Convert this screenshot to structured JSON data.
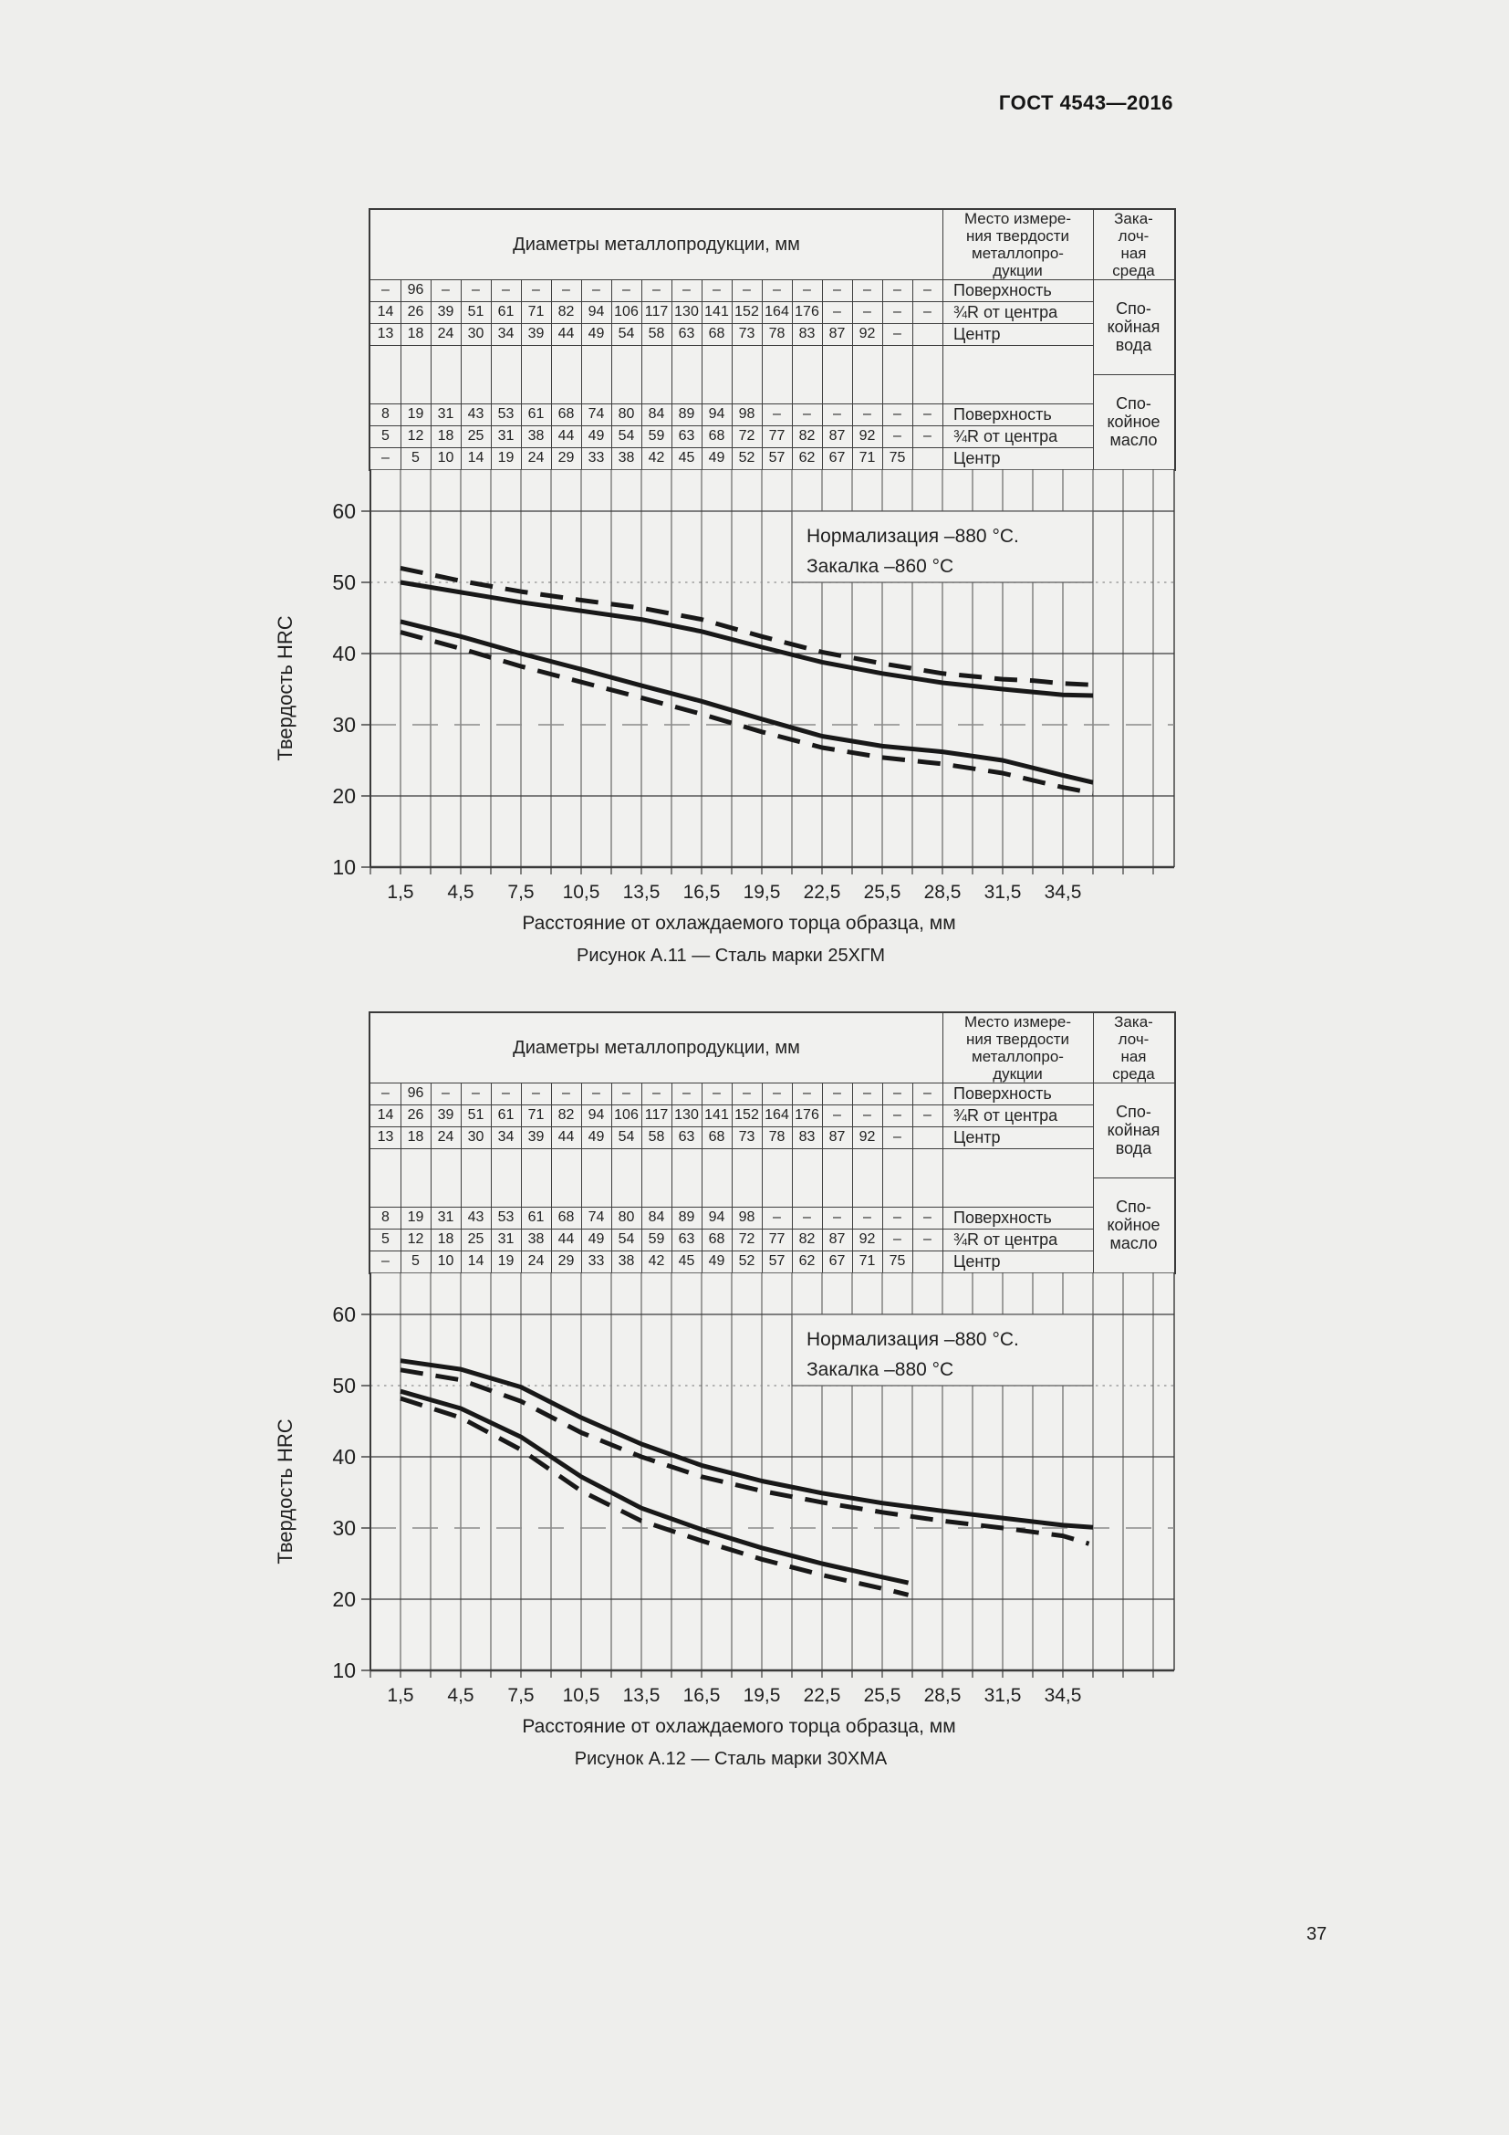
{
  "page": {
    "header": "ГОСТ 4543—2016",
    "page_number": "37"
  },
  "colors": {
    "page_bg": "#eeeeec",
    "panel_bg": "#f1f1ef",
    "grid": "#4a4a4a",
    "major_line": "#3a3a3a",
    "curve": "#181818",
    "dashed_30_line": "#8a8a8a",
    "dotted_50_line": "#8f8f8f"
  },
  "table": {
    "diameters_header": "Диаметры металлопродукции, мм",
    "place_header": "Место измере-\nния твердости\nметаллопро-\nдукции",
    "quench_header": "Зака-\nлоч-\nная\nсреда",
    "water_label": "Спо-\nкойная\nвода",
    "oil_label": "Спо-\nкойное\nмасло",
    "row_labels": [
      "Поверхность",
      "¾R от центра",
      "Центр"
    ],
    "water_rows": [
      [
        "–",
        "96",
        "–",
        "–",
        "–",
        "–",
        "–",
        "–",
        "–",
        "–",
        "–",
        "–",
        "–",
        "–",
        "–",
        "–",
        "–",
        "–",
        "–"
      ],
      [
        "14",
        "26",
        "39",
        "51",
        "61",
        "71",
        "82",
        "94",
        "106",
        "117",
        "130",
        "141",
        "152",
        "164",
        "176",
        "–",
        "–",
        "–",
        "–"
      ],
      [
        "13",
        "18",
        "24",
        "30",
        "34",
        "39",
        "44",
        "49",
        "54",
        "58",
        "63",
        "68",
        "73",
        "78",
        "83",
        "87",
        "92",
        "–",
        ""
      ]
    ],
    "oil_rows": [
      [
        "8",
        "19",
        "31",
        "43",
        "53",
        "61",
        "68",
        "74",
        "80",
        "84",
        "89",
        "94",
        "98",
        "–",
        "–",
        "–",
        "–",
        "–",
        "–"
      ],
      [
        "5",
        "12",
        "18",
        "25",
        "31",
        "38",
        "44",
        "49",
        "54",
        "59",
        "63",
        "68",
        "72",
        "77",
        "82",
        "87",
        "92",
        "–",
        "–"
      ],
      [
        "–",
        "5",
        "10",
        "14",
        "19",
        "24",
        "29",
        "33",
        "38",
        "42",
        "45",
        "49",
        "52",
        "57",
        "62",
        "67",
        "71",
        "75",
        ""
      ]
    ]
  },
  "axes": {
    "y_title": "Твердость HRC",
    "x_title": "Расстояние от охлаждаемого торца образца, мм",
    "y_ticks": [
      60,
      50,
      40,
      30,
      20,
      10
    ],
    "x_tick_labels": [
      "1,5",
      "4,5",
      "7,5",
      "10,5",
      "13,5",
      "16,5",
      "19,5",
      "22,5",
      "25,5",
      "28,5",
      "31,5",
      "34,5"
    ]
  },
  "figures": [
    {
      "caption": "Рисунок А.11 — Сталь марки 25ХГМ",
      "annotation_lines": [
        "Нормализация –880 °С.",
        "Закалка –860 °С"
      ],
      "chart_data": {
        "type": "line",
        "title": "Полоса прокаливаемости стали 25ХГМ",
        "xlabel": "Расстояние от охлаждаемого торца образца, мм",
        "ylabel": "Твердость HRC",
        "xlim": [
          0,
          36
        ],
        "ylim": [
          10,
          65
        ],
        "x_ticks": [
          1.5,
          4.5,
          7.5,
          10.5,
          13.5,
          16.5,
          19.5,
          22.5,
          25.5,
          28.5,
          31.5,
          34.5
        ],
        "y_ticks": [
          10,
          20,
          30,
          40,
          50,
          60
        ],
        "grid": true,
        "annotation": "Нормализация –880 °С. Закалка –860 °С",
        "series": [
          {
            "name": "upper-dashed",
            "style": "dashed",
            "points": [
              [
                1.5,
                52
              ],
              [
                4.5,
                50.2
              ],
              [
                7.5,
                48.7
              ],
              [
                10.5,
                47.5
              ],
              [
                13.5,
                46.4
              ],
              [
                16.5,
                44.8
              ],
              [
                19.5,
                42.4
              ],
              [
                22.5,
                40.2
              ],
              [
                25.5,
                38.6
              ],
              [
                28.5,
                37.2
              ],
              [
                31.5,
                36.4
              ],
              [
                33,
                36.2
              ],
              [
                34.5,
                35.8
              ],
              [
                36,
                35.6
              ]
            ]
          },
          {
            "name": "upper-solid",
            "style": "solid",
            "points": [
              [
                1.5,
                50
              ],
              [
                4.5,
                48.6
              ],
              [
                7.5,
                47.2
              ],
              [
                10.5,
                46
              ],
              [
                13.5,
                44.8
              ],
              [
                16.5,
                43.1
              ],
              [
                19.5,
                40.9
              ],
              [
                22.5,
                38.8
              ],
              [
                25.5,
                37.2
              ],
              [
                28.5,
                35.9
              ],
              [
                31.5,
                35
              ],
              [
                33,
                34.6
              ],
              [
                34.5,
                34.2
              ],
              [
                36,
                34.1
              ]
            ]
          },
          {
            "name": "lower-solid",
            "style": "solid",
            "points": [
              [
                1.5,
                44.5
              ],
              [
                4.5,
                42.4
              ],
              [
                7.5,
                40
              ],
              [
                10.5,
                37.8
              ],
              [
                13.5,
                35.5
              ],
              [
                16.5,
                33.3
              ],
              [
                19.5,
                30.8
              ],
              [
                22.5,
                28.4
              ],
              [
                25.5,
                27
              ],
              [
                28.5,
                26.2
              ],
              [
                31.5,
                25
              ],
              [
                34.5,
                22.9
              ],
              [
                36,
                21.9
              ]
            ]
          },
          {
            "name": "lower-dashed",
            "style": "dashed",
            "points": [
              [
                1.5,
                43
              ],
              [
                4.5,
                40.7
              ],
              [
                7.5,
                38.2
              ],
              [
                10.5,
                36
              ],
              [
                13.5,
                33.8
              ],
              [
                16.5,
                31.5
              ],
              [
                19.5,
                29
              ],
              [
                22.5,
                26.8
              ],
              [
                25.5,
                25.4
              ],
              [
                28.5,
                24.5
              ],
              [
                31.5,
                23.2
              ],
              [
                34.5,
                21.2
              ],
              [
                36,
                20.4
              ]
            ]
          }
        ]
      }
    },
    {
      "caption": "Рисунок А.12 — Сталь марки 30ХМА",
      "annotation_lines": [
        "Нормализация –880 °С.",
        "Закалка –880 °С"
      ],
      "chart_data": {
        "type": "line",
        "title": "Полоса прокаливаемости стали 30ХМА",
        "xlabel": "Расстояние от охлаждаемого торца образца, мм",
        "ylabel": "Твердость HRC",
        "xlim": [
          0,
          36
        ],
        "ylim": [
          10,
          65
        ],
        "x_ticks": [
          1.5,
          4.5,
          7.5,
          10.5,
          13.5,
          16.5,
          19.5,
          22.5,
          25.5,
          28.5,
          31.5,
          34.5
        ],
        "y_ticks": [
          10,
          20,
          30,
          40,
          50,
          60
        ],
        "grid": true,
        "annotation": "Нормализация –880 °С. Закалка –880 °С",
        "series": [
          {
            "name": "upper-solid",
            "style": "solid",
            "points": [
              [
                1.5,
                53.5
              ],
              [
                4.5,
                52.3
              ],
              [
                7.5,
                49.8
              ],
              [
                10.5,
                45.5
              ],
              [
                13.5,
                41.8
              ],
              [
                16.5,
                38.8
              ],
              [
                19.5,
                36.6
              ],
              [
                22.5,
                34.9
              ],
              [
                25.5,
                33.5
              ],
              [
                28.5,
                32.4
              ],
              [
                31.5,
                31.4
              ],
              [
                34.5,
                30.4
              ],
              [
                36,
                30.1
              ]
            ]
          },
          {
            "name": "upper-dashed",
            "style": "dashed",
            "points": [
              [
                1.5,
                52.2
              ],
              [
                4.5,
                50.8
              ],
              [
                7.5,
                47.8
              ],
              [
                10.5,
                43.4
              ],
              [
                13.5,
                40
              ],
              [
                16.5,
                37.2
              ],
              [
                19.5,
                35.2
              ],
              [
                22.5,
                33.6
              ],
              [
                25.5,
                32.2
              ],
              [
                28.5,
                31
              ],
              [
                31.5,
                30
              ],
              [
                34.5,
                28.9
              ],
              [
                35.8,
                27.8
              ]
            ]
          },
          {
            "name": "lower-solid",
            "style": "solid",
            "points": [
              [
                1.5,
                49.2
              ],
              [
                4.5,
                46.8
              ],
              [
                7.5,
                42.8
              ],
              [
                10.5,
                37.2
              ],
              [
                13.5,
                32.8
              ],
              [
                16.5,
                29.8
              ],
              [
                19.5,
                27.2
              ],
              [
                22.5,
                25
              ],
              [
                25.5,
                23.1
              ],
              [
                26.8,
                22.3
              ]
            ]
          },
          {
            "name": "lower-dashed",
            "style": "dashed",
            "points": [
              [
                1.5,
                48.2
              ],
              [
                4.5,
                45.5
              ],
              [
                7.5,
                41
              ],
              [
                10.5,
                35.2
              ],
              [
                13.5,
                31
              ],
              [
                16.5,
                28.2
              ],
              [
                19.5,
                25.6
              ],
              [
                22.5,
                23.4
              ],
              [
                25.5,
                21.5
              ],
              [
                26.8,
                20.6
              ]
            ]
          }
        ]
      }
    }
  ]
}
